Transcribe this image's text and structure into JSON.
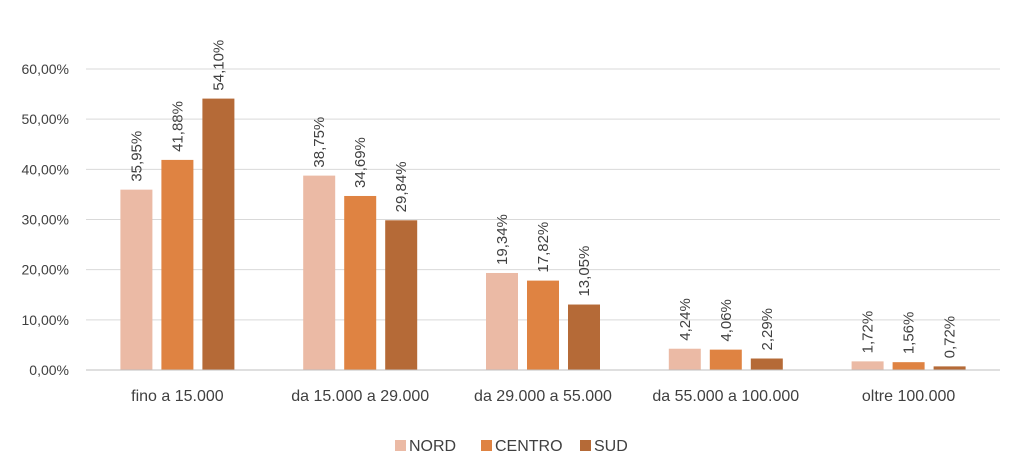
{
  "chart_data": {
    "type": "bar",
    "title": "",
    "xlabel": "",
    "ylabel": "",
    "categories": [
      "fino a 15.000",
      "da 15.000 a 29.000",
      "da 29.000 a 55.000",
      "da 55.000 a 100.000",
      "oltre 100.000"
    ],
    "series": [
      {
        "name": "NORD",
        "color": "#ebbaa5",
        "values": [
          35.95,
          38.75,
          19.34,
          4.24,
          1.72
        ],
        "labels": [
          "35,95%",
          "38,75%",
          "19,34%",
          "4,24%",
          "1,72%"
        ]
      },
      {
        "name": "CENTRO",
        "color": "#df8342",
        "values": [
          41.88,
          34.69,
          17.82,
          4.06,
          1.56
        ],
        "labels": [
          "41,88%",
          "34,69%",
          "17,82%",
          "4,06%",
          "1,56%"
        ]
      },
      {
        "name": "SUD",
        "color": "#b56a37",
        "values": [
          54.1,
          29.84,
          13.05,
          2.29,
          0.72
        ],
        "labels": [
          "54,10%",
          "29,84%",
          "13,05%",
          "2,29%",
          "0,72%"
        ]
      }
    ],
    "ylim": [
      0,
      60
    ],
    "yticks": [
      0,
      10,
      20,
      30,
      40,
      50,
      60
    ],
    "ytick_labels": [
      "0,00%",
      "10,00%",
      "20,00%",
      "30,00%",
      "40,00%",
      "50,00%",
      "60,00%"
    ],
    "grid": true,
    "legend_position": "bottom"
  }
}
